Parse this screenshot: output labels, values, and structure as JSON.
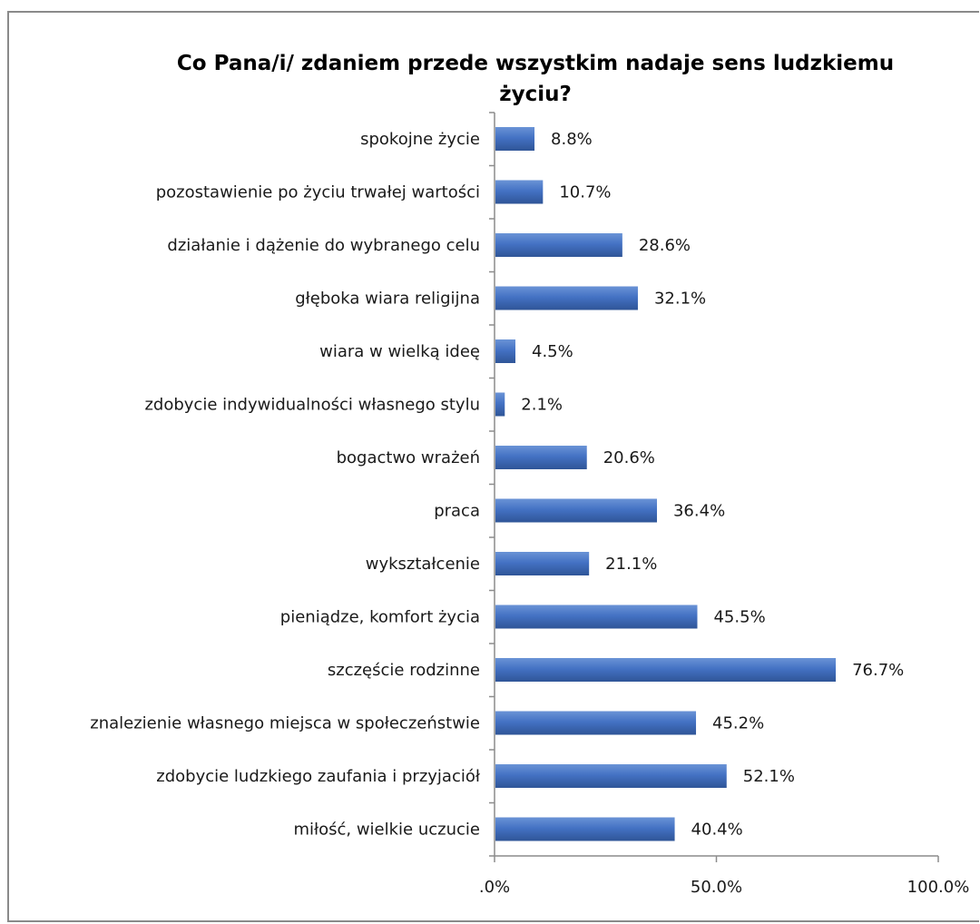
{
  "chart_data": {
    "type": "bar",
    "orientation": "horizontal",
    "title": "Co Pana/i/ zdaniem przede wszystkim nadaje sens ludzkiemu życiu?",
    "categories": [
      "spokojne życie",
      "pozostawienie po życiu trwałej wartości",
      "działanie i dążenie do wybranego celu",
      "głęboka wiara religijna",
      "wiara w wielką ideę",
      "zdobycie indywidualności własnego stylu",
      "bogactwo wrażeń",
      "praca",
      "wykształcenie",
      "pieniądze, komfort życia",
      "szczęście rodzinne",
      "znalezienie własnego miejsca w społeczeństwie",
      "zdobycie ludzkiego zaufania i przyjaciół",
      "miłość, wielkie uczucie"
    ],
    "values": [
      8.8,
      10.7,
      28.6,
      32.1,
      4.5,
      2.1,
      20.6,
      36.4,
      21.1,
      45.5,
      76.7,
      45.2,
      52.1,
      40.4
    ],
    "value_labels": [
      "8.8%",
      "10.7%",
      "28.6%",
      "32.1%",
      "4.5%",
      "2.1%",
      "20.6%",
      "36.4%",
      "21.1%",
      "45.5%",
      "76.7%",
      "45.2%",
      "52.1%",
      "40.4%"
    ],
    "xlim": [
      0,
      100
    ],
    "x_ticks": [
      0,
      50,
      100
    ],
    "x_tick_labels": [
      ".0%",
      "50.0%",
      "100.0%"
    ],
    "grid": false,
    "legend": "none",
    "bar_color": "#4472c4",
    "bar_color_dark": "#2f5597",
    "bar_color_light": "#6a93d6"
  }
}
